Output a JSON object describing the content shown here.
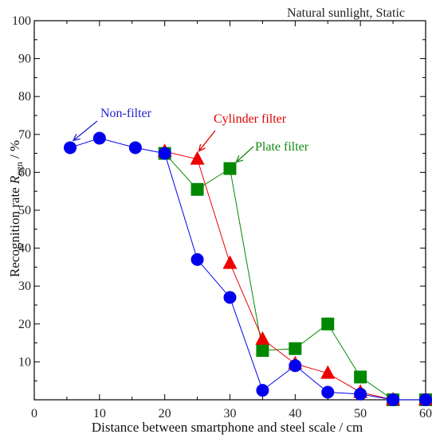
{
  "chart_data": {
    "type": "scatter",
    "title": "Natural sunlight, Static",
    "xlabel": "Distance between smartphone and steel scale / cm",
    "ylabel": {
      "prefix": "Recognition rate ",
      "var": "R",
      "sub": "cgn",
      "suffix": " / %"
    },
    "xlim": [
      0,
      60
    ],
    "ylim": [
      0,
      100
    ],
    "xticks": [
      0,
      10,
      20,
      30,
      40,
      50,
      60
    ],
    "yticks": [
      10,
      20,
      30,
      40,
      50,
      60,
      70,
      80,
      90,
      100
    ],
    "grid": false,
    "series": [
      {
        "name": "Non-filter",
        "color": "#0000ee",
        "marker": "circle",
        "x": [
          5.5,
          10,
          15.5,
          20,
          25,
          30,
          35,
          40,
          45,
          50,
          55,
          60
        ],
        "y": [
          66.5,
          69,
          66.5,
          65,
          37,
          27,
          2.5,
          9,
          2,
          1.5,
          0,
          0
        ]
      },
      {
        "name": "Cylinder filter",
        "color": "#ee0000",
        "marker": "triangle",
        "x": [
          20,
          25,
          30,
          35,
          40,
          45,
          50,
          55,
          60
        ],
        "y": [
          65.5,
          63.5,
          36,
          16,
          9.5,
          7,
          2,
          0,
          0
        ]
      },
      {
        "name": "Plate filter",
        "color": "#008800",
        "marker": "square",
        "x": [
          20,
          25,
          30,
          35,
          40,
          45,
          50,
          55,
          60
        ],
        "y": [
          65,
          55.5,
          61,
          13,
          13.5,
          20,
          6,
          0,
          0
        ]
      }
    ],
    "annotations": [
      {
        "text": "Non-filter",
        "color": "#2222cc",
        "series": 0
      },
      {
        "text": "Cylinder filter",
        "color": "#dd0000",
        "series": 1
      },
      {
        "text": "Plate filter",
        "color": "#118811",
        "series": 2
      }
    ]
  }
}
